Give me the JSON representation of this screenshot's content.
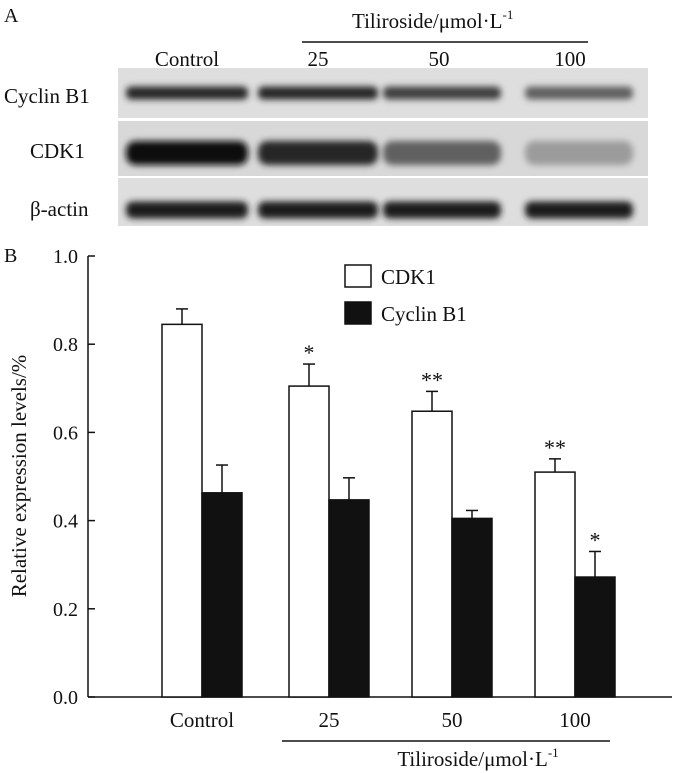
{
  "panel_a": {
    "label": "A",
    "treatment_label": "Tiliroside/μmol·L",
    "treatment_exp": "-1",
    "lane_labels": [
      "Control",
      "25",
      "50",
      "100"
    ],
    "rows": [
      {
        "name": "Cyclin B1",
        "band_intensity": [
          0.85,
          0.85,
          0.75,
          0.6
        ]
      },
      {
        "name": "CDK1",
        "band_intensity": [
          0.95,
          0.85,
          0.6,
          0.35
        ]
      },
      {
        "name": "β-actin",
        "band_intensity": [
          0.9,
          0.9,
          0.9,
          0.9
        ]
      }
    ]
  },
  "chart_data": {
    "panel_label": "B",
    "type": "bar",
    "categories": [
      "Control",
      "25",
      "50",
      "100"
    ],
    "series": [
      {
        "name": "CDK1",
        "color": "#ffffff",
        "values": [
          0.845,
          0.705,
          0.648,
          0.51
        ],
        "errors": [
          0.035,
          0.05,
          0.045,
          0.03
        ],
        "significance": [
          "",
          "*",
          "**",
          "**"
        ]
      },
      {
        "name": "Cyclin B1",
        "color": "#111111",
        "values": [
          0.463,
          0.447,
          0.405,
          0.272
        ],
        "errors": [
          0.063,
          0.05,
          0.018,
          0.058
        ],
        "significance": [
          "",
          "",
          "",
          "*"
        ]
      }
    ],
    "ylabel": "Relative expression levels/%",
    "xlabel": "Tiliroside/μmol·L",
    "xlabel_exp": "-1",
    "ylim": [
      0.0,
      1.0
    ],
    "yticks": [
      "0.0",
      "0.2",
      "0.4",
      "0.6",
      "0.8",
      "1.0"
    ],
    "legend": "top-right"
  }
}
